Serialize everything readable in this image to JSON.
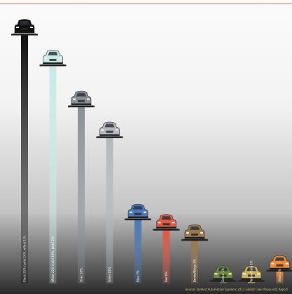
{
  "chart_data": {
    "type": "bar",
    "categories": [
      "Black 25% (solid 24%, effect 1%)",
      "White 22% (solid 19%, pearl 3%)",
      "Gray 18%",
      "Silver 15%",
      "Blue 7%",
      "Red 6%",
      "Brown/Beige 5%",
      "Green 1%",
      "Yellow/Gold 1%",
      "Other 2%"
    ],
    "values": [
      25,
      22,
      18,
      15,
      7,
      6,
      5,
      1,
      1,
      2
    ],
    "colors": [
      "#111111",
      "#c8eae6",
      "#8a8f96",
      "#b4b8bc",
      "#4a78b8",
      "#e05a44",
      "#9a7a4c",
      "#6f8a3c",
      "#c7b060",
      "#f08a3a"
    ],
    "icon": "car-icon",
    "ylim": [
      0,
      25
    ],
    "grid": false,
    "legend": "none",
    "source": "Source: DuPont Automotive Systems 2011 Global Color Popularity Report"
  }
}
